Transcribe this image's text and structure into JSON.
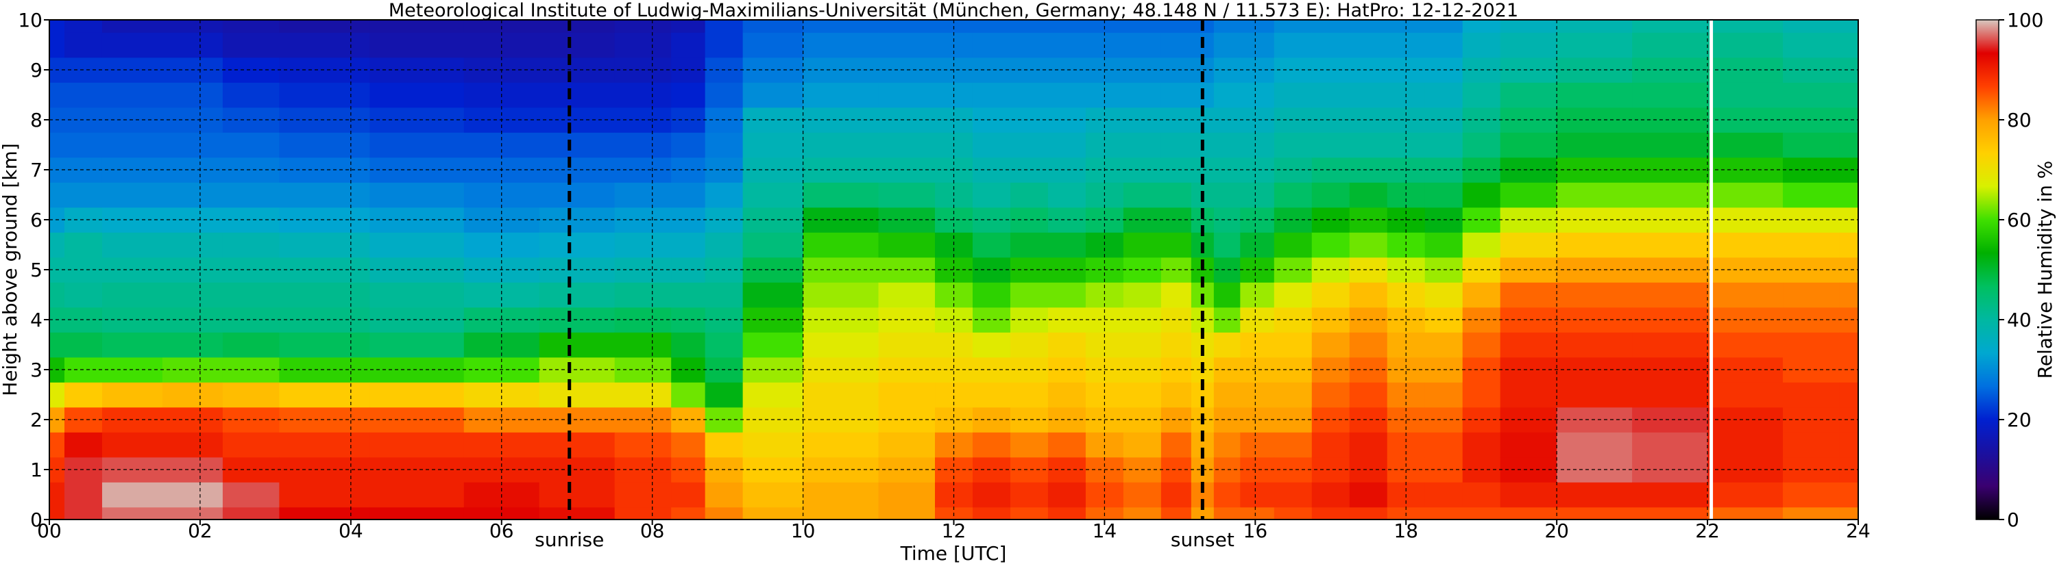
{
  "chart_data": {
    "type": "heatmap",
    "title": "Meteorological Institute of Ludwig-Maximilians-Universität (München, Germany; 48.148 N / 11.573 E):    HatPro: 12-12-2021",
    "xlabel": "Time [UTC]",
    "ylabel": "Height above ground [km]",
    "xlim": [
      0,
      24
    ],
    "ylim": [
      0,
      10
    ],
    "x_ticks": [
      "00",
      "02",
      "04",
      "06",
      "08",
      "10",
      "12",
      "14",
      "16",
      "18",
      "20",
      "22",
      "24"
    ],
    "y_ticks": [
      "0",
      "1",
      "2",
      "3",
      "4",
      "5",
      "6",
      "7",
      "8",
      "9",
      "10"
    ],
    "grid": true,
    "colorbar": {
      "label": "Relative Humidity in %",
      "range": [
        0,
        100
      ],
      "ticks": [
        "0",
        "20",
        "40",
        "60",
        "80",
        "100"
      ],
      "colors": [
        "#000000",
        "#3a0070",
        "#1a10a0",
        "#0020d0",
        "#0070e0",
        "#00a8d0",
        "#00b8a0",
        "#00c060",
        "#00b000",
        "#40e000",
        "#d8f000",
        "#ffd000",
        "#ffa000",
        "#ff4000",
        "#e00000",
        "#d8c8c0"
      ]
    },
    "annotations": [
      {
        "label": "sunrise",
        "x": 6.9
      },
      {
        "label": "sunset",
        "x": 15.3
      }
    ],
    "missing_data_line_x": 22.05,
    "time_hours": [
      0.0,
      0.4,
      1.0,
      2.0,
      2.6,
      3.5,
      5.0,
      6.0,
      7.0,
      8.0,
      8.5,
      8.9,
      9.5,
      10.5,
      11.5,
      12.0,
      12.5,
      13.0,
      13.5,
      14.0,
      14.5,
      15.0,
      15.3,
      15.6,
      16.0,
      16.5,
      17.0,
      17.5,
      18.0,
      18.5,
      19.0,
      19.5,
      20.5,
      21.5,
      22.5,
      23.5,
      24.0
    ],
    "heights_km": [
      0,
      0.5,
      1.0,
      1.5,
      2.0,
      2.5,
      3.0,
      3.5,
      4.0,
      4.5,
      5.0,
      5.5,
      6.0,
      6.5,
      7.0,
      7.5,
      8.0,
      8.5,
      9.0,
      9.5,
      10.0
    ],
    "rh_columns": [
      [
        90,
        90,
        88,
        86,
        80,
        68,
        55,
        48,
        44,
        42,
        40,
        38,
        32,
        30,
        28,
        26,
        25,
        24,
        22,
        20,
        20
      ],
      [
        95,
        95,
        95,
        92,
        86,
        74,
        60,
        48,
        44,
        41,
        40,
        40,
        35,
        30,
        28,
        26,
        25,
        24,
        22,
        18,
        18
      ],
      [
        97,
        99,
        96,
        90,
        88,
        76,
        60,
        47,
        43,
        42,
        40,
        38,
        34,
        30,
        28,
        26,
        25,
        24,
        22,
        18,
        16
      ],
      [
        97,
        99,
        96,
        90,
        88,
        77,
        61,
        47,
        43,
        42,
        40,
        38,
        34,
        30,
        28,
        26,
        25,
        24,
        22,
        18,
        16
      ],
      [
        95,
        96,
        90,
        88,
        86,
        76,
        61,
        48,
        43,
        42,
        40,
        38,
        34,
        30,
        28,
        26,
        24,
        22,
        20,
        16,
        15
      ],
      [
        93,
        90,
        90,
        88,
        85,
        74,
        58,
        47,
        43,
        42,
        40,
        37,
        33,
        30,
        27,
        25,
        23,
        21,
        19,
        16,
        14
      ],
      [
        93,
        90,
        90,
        88,
        85,
        74,
        58,
        46,
        42,
        41,
        38,
        35,
        32,
        29,
        26,
        24,
        22,
        20,
        18,
        15,
        14
      ],
      [
        93,
        92,
        90,
        88,
        82,
        72,
        60,
        50,
        45,
        40,
        36,
        33,
        30,
        28,
        26,
        24,
        21,
        19,
        17,
        15,
        14
      ],
      [
        92,
        90,
        90,
        88,
        82,
        70,
        64,
        55,
        46,
        41,
        37,
        34,
        31,
        28,
        26,
        24,
        21,
        19,
        17,
        15,
        14
      ],
      [
        88,
        88,
        88,
        86,
        82,
        70,
        62,
        55,
        47,
        42,
        38,
        35,
        32,
        29,
        26,
        24,
        21,
        19,
        17,
        16,
        15
      ],
      [
        86,
        88,
        86,
        84,
        78,
        62,
        54,
        50,
        46,
        42,
        38,
        35,
        32,
        29,
        27,
        25,
        22,
        20,
        18,
        18,
        16
      ],
      [
        82,
        80,
        78,
        74,
        62,
        52,
        48,
        46,
        44,
        42,
        40,
        38,
        35,
        32,
        29,
        28,
        27,
        25,
        24,
        22,
        22
      ],
      [
        78,
        76,
        74,
        72,
        70,
        68,
        64,
        60,
        56,
        52,
        48,
        44,
        42,
        40,
        38,
        37,
        36,
        30,
        28,
        26,
        25
      ],
      [
        78,
        78,
        76,
        74,
        72,
        72,
        70,
        68,
        66,
        64,
        62,
        58,
        52,
        45,
        40,
        38,
        36,
        32,
        30,
        28,
        26
      ],
      [
        80,
        80,
        78,
        76,
        74,
        74,
        72,
        70,
        68,
        66,
        62,
        56,
        50,
        44,
        40,
        38,
        36,
        32,
        30,
        28,
        26
      ],
      [
        86,
        88,
        86,
        82,
        76,
        74,
        72,
        70,
        66,
        62,
        56,
        52,
        46,
        42,
        40,
        38,
        36,
        32,
        30,
        28,
        26
      ],
      [
        88,
        90,
        88,
        84,
        78,
        74,
        72,
        68,
        62,
        58,
        52,
        48,
        44,
        40,
        38,
        36,
        34,
        32,
        30,
        28,
        26
      ],
      [
        86,
        88,
        86,
        82,
        76,
        74,
        72,
        70,
        66,
        62,
        56,
        50,
        46,
        42,
        38,
        36,
        34,
        32,
        30,
        28,
        26
      ],
      [
        88,
        90,
        88,
        84,
        78,
        76,
        74,
        72,
        68,
        62,
        56,
        50,
        44,
        40,
        38,
        36,
        34,
        32,
        30,
        28,
        26
      ],
      [
        84,
        86,
        84,
        80,
        76,
        74,
        72,
        70,
        68,
        64,
        58,
        52,
        46,
        42,
        40,
        38,
        36,
        32,
        30,
        28,
        26
      ],
      [
        82,
        84,
        82,
        78,
        76,
        74,
        72,
        70,
        68,
        65,
        60,
        56,
        50,
        44,
        40,
        38,
        36,
        32,
        30,
        28,
        26
      ],
      [
        86,
        88,
        86,
        84,
        80,
        76,
        74,
        72,
        70,
        68,
        62,
        56,
        50,
        44,
        40,
        38,
        36,
        32,
        30,
        28,
        26
      ],
      [
        80,
        82,
        80,
        78,
        76,
        74,
        72,
        70,
        66,
        62,
        56,
        50,
        46,
        42,
        40,
        38,
        36,
        32,
        30,
        28,
        26
      ],
      [
        84,
        86,
        84,
        82,
        80,
        78,
        76,
        72,
        62,
        56,
        50,
        46,
        44,
        42,
        40,
        38,
        36,
        34,
        32,
        30,
        28
      ],
      [
        84,
        88,
        86,
        84,
        80,
        78,
        76,
        74,
        70,
        64,
        56,
        50,
        46,
        42,
        40,
        38,
        36,
        34,
        32,
        30,
        28
      ],
      [
        86,
        88,
        86,
        84,
        80,
        78,
        76,
        74,
        72,
        68,
        62,
        56,
        50,
        46,
        42,
        40,
        38,
        36,
        34,
        32,
        30
      ],
      [
        88,
        90,
        88,
        88,
        86,
        84,
        82,
        80,
        76,
        72,
        66,
        60,
        54,
        48,
        44,
        40,
        38,
        36,
        34,
        32,
        30
      ],
      [
        88,
        92,
        90,
        90,
        88,
        86,
        84,
        82,
        80,
        76,
        70,
        62,
        56,
        50,
        44,
        40,
        38,
        36,
        34,
        32,
        30
      ],
      [
        86,
        88,
        86,
        86,
        84,
        82,
        80,
        78,
        76,
        72,
        66,
        60,
        54,
        48,
        44,
        40,
        38,
        36,
        34,
        32,
        30
      ],
      [
        86,
        88,
        86,
        86,
        84,
        82,
        80,
        78,
        74,
        70,
        64,
        58,
        52,
        48,
        44,
        40,
        38,
        36,
        34,
        32,
        30
      ],
      [
        86,
        88,
        90,
        90,
        88,
        86,
        86,
        84,
        82,
        78,
        72,
        66,
        60,
        54,
        48,
        44,
        42,
        40,
        38,
        36,
        34
      ],
      [
        86,
        90,
        92,
        92,
        91,
        90,
        90,
        88,
        86,
        84,
        78,
        72,
        66,
        58,
        52,
        48,
        46,
        44,
        40,
        38,
        36
      ],
      [
        86,
        90,
        97,
        97,
        96,
        90,
        90,
        88,
        86,
        84,
        80,
        74,
        68,
        62,
        56,
        50,
        48,
        46,
        42,
        40,
        38
      ],
      [
        86,
        90,
        96,
        96,
        95,
        90,
        90,
        88,
        86,
        84,
        80,
        74,
        68,
        62,
        56,
        50,
        48,
        46,
        44,
        42,
        40
      ],
      [
        84,
        88,
        90,
        90,
        90,
        88,
        88,
        86,
        84,
        82,
        78,
        74,
        68,
        62,
        56,
        50,
        46,
        44,
        44,
        42,
        40
      ],
      [
        82,
        86,
        88,
        88,
        88,
        88,
        86,
        86,
        84,
        82,
        78,
        74,
        68,
        60,
        54,
        48,
        46,
        44,
        42,
        40,
        38
      ],
      [
        82,
        86,
        88,
        88,
        88,
        88,
        86,
        86,
        84,
        82,
        78,
        74,
        68,
        60,
        54,
        48,
        46,
        44,
        42,
        40,
        38
      ]
    ]
  }
}
